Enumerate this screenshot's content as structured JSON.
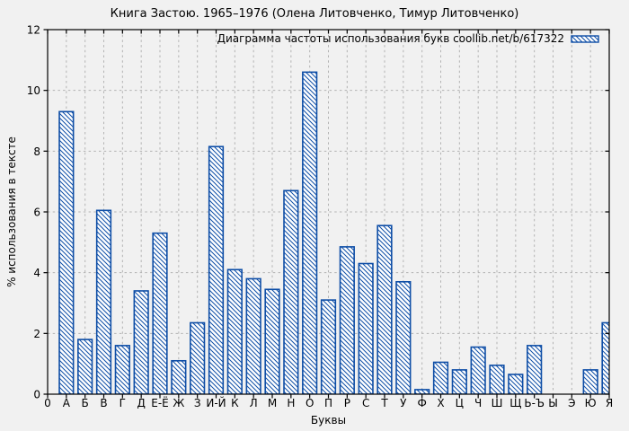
{
  "chart_data": {
    "type": "bar",
    "title": "Книга Застою. 1965–1976 (Олена Литовченко, Тимур Литовченко)",
    "legend_label": "Диаграмма частоты использования букв coollib.net/b/617322",
    "legend_position": "top-right",
    "xlabel": "Буквы",
    "ylabel": "% использования в тексте",
    "x_origin_label": "0",
    "categories": [
      "А",
      "Б",
      "В",
      "Г",
      "Д",
      "Е-Ё",
      "Ж",
      "З",
      "И-Й",
      "К",
      "Л",
      "М",
      "Н",
      "О",
      "П",
      "Р",
      "С",
      "Т",
      "У",
      "Ф",
      "Х",
      "Ц",
      "Ч",
      "Ш",
      "Щ",
      "Ь-Ъ",
      "Ы",
      "Э",
      "Ю",
      "Я"
    ],
    "values": [
      9.3,
      1.8,
      6.05,
      1.6,
      3.4,
      5.3,
      1.1,
      2.35,
      8.15,
      4.1,
      3.8,
      3.45,
      6.7,
      10.6,
      3.1,
      4.85,
      4.3,
      5.55,
      3.7,
      0.15,
      1.05,
      0.8,
      1.55,
      0.95,
      0.65,
      1.6,
      0,
      0,
      0.8,
      2.35
    ],
    "ylim": [
      0,
      12
    ],
    "yticks": [
      0,
      2,
      4,
      6,
      8,
      10,
      12
    ],
    "grid": true,
    "bar_style": {
      "fill": "#ffffff",
      "hatch": "diagonal-down",
      "line_color": "#0d4da6"
    }
  },
  "colors": {
    "background": "#f1f1f1",
    "plot_border": "#000000",
    "grid": "#b3b3b3",
    "bar_line": "#0d4da6",
    "bar_fill": "#ffffff",
    "text": "#000000"
  }
}
